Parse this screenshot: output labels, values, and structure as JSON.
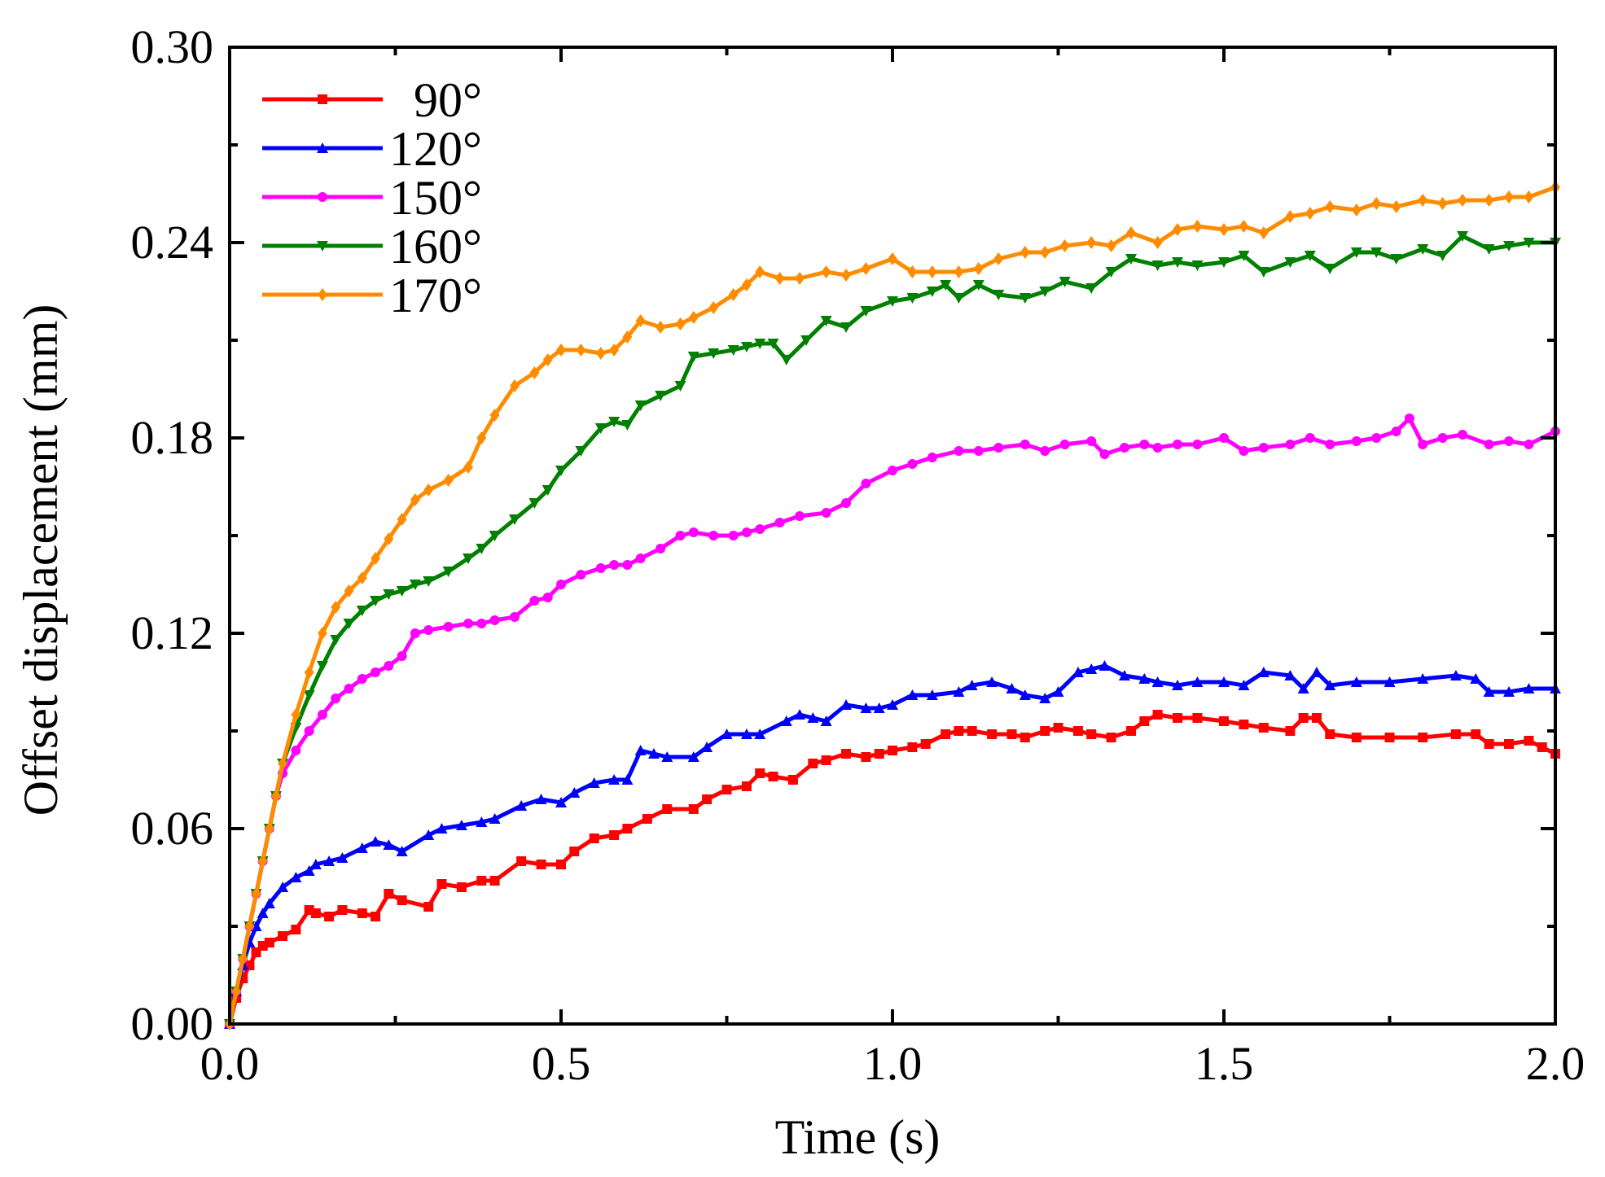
{
  "chart_data": {
    "type": "line",
    "xlabel": "Time (s)",
    "ylabel": "Offset displacement (mm)",
    "xlim": [
      0.0,
      2.0
    ],
    "ylim": [
      0.0,
      0.3
    ],
    "xticks": [
      0.0,
      0.5,
      1.0,
      1.5,
      2.0
    ],
    "xtick_labels": [
      "0.0",
      "0.5",
      "1.0",
      "1.5",
      "2.0"
    ],
    "yticks": [
      0.0,
      0.06,
      0.12,
      0.18,
      0.24,
      0.3
    ],
    "ytick_labels": [
      "0.00",
      "0.06",
      "0.12",
      "0.18",
      "0.24",
      "0.30"
    ],
    "grid": false,
    "legend": "top-left",
    "series": [
      {
        "name": "90°",
        "color": "#ff0000",
        "marker": "square",
        "x": [
          0.0,
          0.01,
          0.02,
          0.03,
          0.04,
          0.05,
          0.06,
          0.08,
          0.1,
          0.12,
          0.13,
          0.15,
          0.17,
          0.2,
          0.22,
          0.24,
          0.26,
          0.3,
          0.32,
          0.35,
          0.38,
          0.4,
          0.44,
          0.47,
          0.5,
          0.52,
          0.55,
          0.58,
          0.6,
          0.63,
          0.66,
          0.7,
          0.72,
          0.75,
          0.78,
          0.8,
          0.82,
          0.85,
          0.88,
          0.9,
          0.93,
          0.96,
          0.98,
          1.0,
          1.03,
          1.05,
          1.08,
          1.1,
          1.12,
          1.15,
          1.18,
          1.2,
          1.23,
          1.25,
          1.28,
          1.3,
          1.33,
          1.36,
          1.38,
          1.4,
          1.43,
          1.46,
          1.5,
          1.53,
          1.56,
          1.6,
          1.62,
          1.64,
          1.66,
          1.7,
          1.75,
          1.8,
          1.85,
          1.88,
          1.9,
          1.93,
          1.96,
          1.98,
          2.0
        ],
        "y": [
          0.0,
          0.008,
          0.014,
          0.018,
          0.022,
          0.024,
          0.025,
          0.027,
          0.029,
          0.035,
          0.034,
          0.033,
          0.035,
          0.034,
          0.033,
          0.04,
          0.038,
          0.036,
          0.043,
          0.042,
          0.044,
          0.044,
          0.05,
          0.049,
          0.049,
          0.053,
          0.057,
          0.058,
          0.06,
          0.063,
          0.066,
          0.066,
          0.069,
          0.072,
          0.073,
          0.077,
          0.076,
          0.075,
          0.08,
          0.081,
          0.083,
          0.082,
          0.083,
          0.084,
          0.085,
          0.086,
          0.089,
          0.09,
          0.09,
          0.089,
          0.089,
          0.088,
          0.09,
          0.091,
          0.09,
          0.089,
          0.088,
          0.09,
          0.093,
          0.095,
          0.094,
          0.094,
          0.093,
          0.092,
          0.091,
          0.09,
          0.094,
          0.094,
          0.089,
          0.088,
          0.088,
          0.088,
          0.089,
          0.089,
          0.086,
          0.086,
          0.087,
          0.085,
          0.083
        ]
      },
      {
        "name": "120°",
        "color": "#0000ff",
        "marker": "triangle-up",
        "x": [
          0.0,
          0.01,
          0.02,
          0.03,
          0.04,
          0.05,
          0.06,
          0.08,
          0.1,
          0.12,
          0.13,
          0.15,
          0.17,
          0.2,
          0.22,
          0.24,
          0.26,
          0.3,
          0.32,
          0.35,
          0.38,
          0.4,
          0.44,
          0.47,
          0.5,
          0.52,
          0.55,
          0.58,
          0.6,
          0.62,
          0.64,
          0.66,
          0.7,
          0.72,
          0.75,
          0.78,
          0.8,
          0.84,
          0.86,
          0.88,
          0.9,
          0.93,
          0.96,
          0.98,
          1.0,
          1.03,
          1.06,
          1.1,
          1.12,
          1.15,
          1.18,
          1.2,
          1.23,
          1.25,
          1.28,
          1.3,
          1.32,
          1.35,
          1.38,
          1.4,
          1.43,
          1.46,
          1.5,
          1.53,
          1.56,
          1.6,
          1.62,
          1.64,
          1.66,
          1.7,
          1.75,
          1.8,
          1.85,
          1.88,
          1.9,
          1.93,
          1.96,
          2.0
        ],
        "y": [
          0.0,
          0.01,
          0.018,
          0.025,
          0.03,
          0.034,
          0.037,
          0.042,
          0.045,
          0.047,
          0.049,
          0.05,
          0.051,
          0.054,
          0.056,
          0.055,
          0.053,
          0.058,
          0.06,
          0.061,
          0.062,
          0.063,
          0.067,
          0.069,
          0.068,
          0.071,
          0.074,
          0.075,
          0.075,
          0.084,
          0.083,
          0.082,
          0.082,
          0.085,
          0.089,
          0.089,
          0.089,
          0.093,
          0.095,
          0.094,
          0.093,
          0.098,
          0.097,
          0.097,
          0.098,
          0.101,
          0.101,
          0.102,
          0.104,
          0.105,
          0.103,
          0.101,
          0.1,
          0.102,
          0.108,
          0.109,
          0.11,
          0.107,
          0.106,
          0.105,
          0.104,
          0.105,
          0.105,
          0.104,
          0.108,
          0.107,
          0.103,
          0.108,
          0.104,
          0.105,
          0.105,
          0.106,
          0.107,
          0.106,
          0.102,
          0.102,
          0.103,
          0.103
        ]
      },
      {
        "name": "150°",
        "color": "#ff00ff",
        "marker": "circle",
        "x": [
          0.0,
          0.01,
          0.02,
          0.03,
          0.04,
          0.05,
          0.06,
          0.07,
          0.08,
          0.1,
          0.12,
          0.14,
          0.16,
          0.18,
          0.2,
          0.22,
          0.24,
          0.26,
          0.28,
          0.3,
          0.33,
          0.36,
          0.38,
          0.4,
          0.43,
          0.46,
          0.48,
          0.5,
          0.53,
          0.56,
          0.58,
          0.6,
          0.62,
          0.65,
          0.68,
          0.7,
          0.73,
          0.76,
          0.78,
          0.8,
          0.83,
          0.86,
          0.9,
          0.93,
          0.96,
          1.0,
          1.03,
          1.06,
          1.1,
          1.13,
          1.16,
          1.2,
          1.23,
          1.26,
          1.3,
          1.32,
          1.35,
          1.38,
          1.4,
          1.43,
          1.46,
          1.5,
          1.53,
          1.56,
          1.6,
          1.63,
          1.66,
          1.7,
          1.73,
          1.76,
          1.78,
          1.8,
          1.83,
          1.86,
          1.9,
          1.93,
          1.96,
          2.0
        ],
        "y": [
          0.0,
          0.01,
          0.02,
          0.03,
          0.04,
          0.05,
          0.06,
          0.07,
          0.077,
          0.084,
          0.09,
          0.095,
          0.1,
          0.103,
          0.106,
          0.108,
          0.11,
          0.113,
          0.12,
          0.121,
          0.122,
          0.123,
          0.123,
          0.124,
          0.125,
          0.13,
          0.131,
          0.135,
          0.138,
          0.14,
          0.141,
          0.141,
          0.143,
          0.146,
          0.15,
          0.151,
          0.15,
          0.15,
          0.151,
          0.152,
          0.154,
          0.156,
          0.157,
          0.16,
          0.166,
          0.17,
          0.172,
          0.174,
          0.176,
          0.176,
          0.177,
          0.178,
          0.176,
          0.178,
          0.179,
          0.175,
          0.177,
          0.178,
          0.177,
          0.178,
          0.178,
          0.18,
          0.176,
          0.177,
          0.178,
          0.18,
          0.178,
          0.179,
          0.18,
          0.182,
          0.186,
          0.178,
          0.18,
          0.181,
          0.178,
          0.179,
          0.178,
          0.182
        ]
      },
      {
        "name": "160°",
        "color": "#008000",
        "marker": "triangle-down",
        "x": [
          0.0,
          0.01,
          0.02,
          0.03,
          0.04,
          0.05,
          0.06,
          0.07,
          0.08,
          0.1,
          0.12,
          0.14,
          0.16,
          0.18,
          0.2,
          0.22,
          0.24,
          0.26,
          0.28,
          0.3,
          0.33,
          0.36,
          0.38,
          0.4,
          0.43,
          0.46,
          0.48,
          0.5,
          0.53,
          0.56,
          0.58,
          0.6,
          0.62,
          0.65,
          0.68,
          0.7,
          0.73,
          0.76,
          0.78,
          0.8,
          0.82,
          0.84,
          0.87,
          0.9,
          0.93,
          0.96,
          1.0,
          1.03,
          1.06,
          1.08,
          1.1,
          1.13,
          1.16,
          1.2,
          1.23,
          1.26,
          1.3,
          1.33,
          1.36,
          1.4,
          1.43,
          1.46,
          1.5,
          1.53,
          1.56,
          1.6,
          1.63,
          1.66,
          1.7,
          1.73,
          1.76,
          1.8,
          1.83,
          1.86,
          1.9,
          1.93,
          1.96,
          2.0
        ],
        "y": [
          0.0,
          0.01,
          0.02,
          0.03,
          0.04,
          0.05,
          0.06,
          0.07,
          0.08,
          0.091,
          0.101,
          0.11,
          0.118,
          0.123,
          0.127,
          0.13,
          0.132,
          0.133,
          0.135,
          0.136,
          0.139,
          0.143,
          0.146,
          0.15,
          0.155,
          0.16,
          0.164,
          0.17,
          0.176,
          0.183,
          0.185,
          0.184,
          0.19,
          0.193,
          0.196,
          0.205,
          0.206,
          0.207,
          0.208,
          0.209,
          0.209,
          0.204,
          0.21,
          0.216,
          0.214,
          0.219,
          0.222,
          0.223,
          0.225,
          0.227,
          0.223,
          0.227,
          0.224,
          0.223,
          0.225,
          0.228,
          0.226,
          0.231,
          0.235,
          0.233,
          0.234,
          0.233,
          0.234,
          0.236,
          0.231,
          0.234,
          0.236,
          0.232,
          0.237,
          0.237,
          0.235,
          0.238,
          0.236,
          0.242,
          0.238,
          0.239,
          0.24,
          0.24
        ]
      },
      {
        "name": "170°",
        "color": "#ff8c00",
        "marker": "diamond",
        "x": [
          0.0,
          0.01,
          0.02,
          0.03,
          0.04,
          0.05,
          0.06,
          0.07,
          0.08,
          0.1,
          0.12,
          0.14,
          0.16,
          0.18,
          0.2,
          0.22,
          0.24,
          0.26,
          0.28,
          0.3,
          0.33,
          0.36,
          0.38,
          0.4,
          0.43,
          0.46,
          0.48,
          0.5,
          0.53,
          0.56,
          0.58,
          0.6,
          0.62,
          0.65,
          0.68,
          0.7,
          0.73,
          0.76,
          0.78,
          0.8,
          0.83,
          0.86,
          0.9,
          0.93,
          0.96,
          1.0,
          1.03,
          1.06,
          1.1,
          1.13,
          1.16,
          1.2,
          1.23,
          1.26,
          1.3,
          1.33,
          1.36,
          1.4,
          1.43,
          1.46,
          1.5,
          1.53,
          1.56,
          1.6,
          1.63,
          1.66,
          1.7,
          1.73,
          1.76,
          1.8,
          1.83,
          1.86,
          1.9,
          1.93,
          1.96,
          2.0
        ],
        "y": [
          0.0,
          0.01,
          0.02,
          0.03,
          0.04,
          0.05,
          0.06,
          0.07,
          0.08,
          0.095,
          0.108,
          0.12,
          0.128,
          0.133,
          0.137,
          0.143,
          0.149,
          0.155,
          0.161,
          0.164,
          0.167,
          0.171,
          0.18,
          0.187,
          0.196,
          0.2,
          0.204,
          0.207,
          0.207,
          0.206,
          0.207,
          0.211,
          0.216,
          0.214,
          0.215,
          0.217,
          0.22,
          0.224,
          0.227,
          0.231,
          0.229,
          0.229,
          0.231,
          0.23,
          0.232,
          0.235,
          0.231,
          0.231,
          0.231,
          0.232,
          0.235,
          0.237,
          0.237,
          0.239,
          0.24,
          0.239,
          0.243,
          0.24,
          0.244,
          0.245,
          0.244,
          0.245,
          0.243,
          0.248,
          0.249,
          0.251,
          0.25,
          0.252,
          0.251,
          0.253,
          0.252,
          0.253,
          0.253,
          0.254,
          0.254,
          0.257
        ]
      }
    ]
  }
}
